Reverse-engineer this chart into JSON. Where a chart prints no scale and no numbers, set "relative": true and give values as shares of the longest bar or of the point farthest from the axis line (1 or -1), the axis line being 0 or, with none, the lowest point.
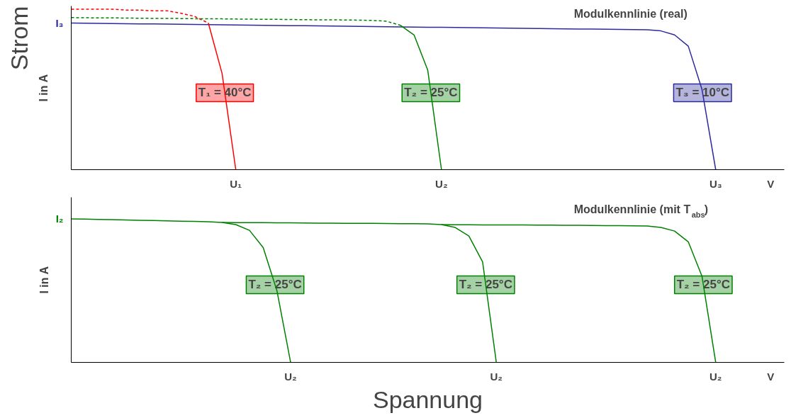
{
  "chart_data": [
    {
      "type": "line",
      "relative": true,
      "ylabel": "I in A",
      "annotations": [
        "Strom",
        "I₃",
        "Modulkennlinie (real)"
      ],
      "grid": false,
      "line_style": "solid",
      "categories": [
        null,
        null,
        null,
        null,
        null,
        null,
        null,
        null,
        null,
        null,
        null,
        null,
        "U₁",
        null,
        null,
        null,
        null,
        null,
        null,
        null,
        null,
        null,
        null,
        null,
        null,
        null,
        null,
        "U₂",
        null,
        null,
        null,
        null,
        null,
        null,
        null,
        null,
        null,
        null,
        null,
        null,
        null,
        null,
        null,
        null,
        null,
        null,
        null,
        "U₃",
        null,
        null,
        null,
        "V",
        null
      ],
      "series": [
        {
          "name": "T₃ = 10°C",
          "color": "#2b2b9b",
          "values": [
            0.914,
            0.913,
            0.912,
            0.911,
            0.91,
            0.909,
            0.908,
            0.907,
            0.906,
            0.905,
            0.904,
            0.903,
            0.902,
            0.901,
            0.9,
            0.899,
            0.898,
            0.897,
            0.896,
            0.895,
            0.894,
            0.893,
            0.892,
            0.891,
            0.89,
            0.889,
            0.888,
            0.887,
            0.886,
            0.885,
            0.884,
            0.883,
            0.882,
            0.881,
            0.88,
            0.879,
            0.878,
            0.877,
            0.876,
            0.875,
            0.874,
            0.873,
            0.872,
            0.865,
            0.84,
            0.77,
            0.5,
            0,
            null,
            null,
            null,
            null,
            null
          ]
        },
        {
          "color": "#ff0000",
          "line_style": "dashed",
          "values": [
            1.0,
            1.0,
            1.0,
            1.0,
            0.995,
            0.995,
            0.99,
            0.99,
            0.975,
            0.955,
            0.914,
            null,
            null,
            null,
            null,
            null,
            null,
            null,
            null,
            null,
            null,
            null,
            null,
            null,
            null,
            null,
            null,
            null,
            null,
            null,
            null,
            null,
            null,
            null,
            null,
            null,
            null,
            null,
            null,
            null,
            null,
            null,
            null,
            null,
            null,
            null,
            null,
            null,
            null,
            null,
            null,
            null,
            null
          ]
        },
        {
          "name": "T₁ = 40°C",
          "color": "#ff0000",
          "values": [
            null,
            null,
            null,
            null,
            null,
            null,
            null,
            null,
            null,
            null,
            0.914,
            0.6,
            0,
            null,
            null,
            null,
            null,
            null,
            null,
            null,
            null,
            null,
            null,
            null,
            null,
            null,
            null,
            null,
            null,
            null,
            null,
            null,
            null,
            null,
            null,
            null,
            null,
            null,
            null,
            null,
            null,
            null,
            null,
            null,
            null,
            null,
            null,
            null,
            null,
            null,
            null,
            null,
            null
          ]
        },
        {
          "color": "#008000",
          "line_style": "dashed",
          "values": [
            0.948,
            0.947,
            0.946,
            0.946,
            0.945,
            0.944,
            0.943,
            0.943,
            0.942,
            0.941,
            0.94,
            0.94,
            0.939,
            0.938,
            0.937,
            0.937,
            0.936,
            0.935,
            0.934,
            0.934,
            0.933,
            0.932,
            0.93,
            0.925,
            0.9,
            null,
            null,
            null,
            null,
            null,
            null,
            null,
            null,
            null,
            null,
            null,
            null,
            null,
            null,
            null,
            null,
            null,
            null,
            null,
            null,
            null,
            null,
            null,
            null,
            null,
            null,
            null,
            null
          ]
        },
        {
          "name": "T₂ = 25°C",
          "color": "#008000",
          "values": [
            null,
            null,
            null,
            null,
            null,
            null,
            null,
            null,
            null,
            null,
            null,
            null,
            null,
            null,
            null,
            null,
            null,
            null,
            null,
            null,
            null,
            null,
            null,
            null,
            0.9,
            0.84,
            0.62,
            0,
            null,
            null,
            null,
            null,
            null,
            null,
            null,
            null,
            null,
            null,
            null,
            null,
            null,
            null,
            null,
            null,
            null,
            null,
            null,
            null,
            null,
            null,
            null,
            null,
            null
          ]
        }
      ]
    },
    {
      "type": "line",
      "relative": true,
      "ylabel": "I in A",
      "xlabel": "Spannung",
      "annotations": [
        "I₂",
        "Modulkennlinie (mit T$_{abs}$)"
      ],
      "grid": false,
      "line_style": "solid",
      "categories": [
        null,
        null,
        null,
        null,
        null,
        null,
        null,
        null,
        null,
        null,
        null,
        null,
        null,
        null,
        null,
        null,
        "U₂",
        null,
        null,
        null,
        null,
        null,
        null,
        null,
        null,
        null,
        null,
        null,
        null,
        null,
        null,
        "U₂",
        null,
        null,
        null,
        null,
        null,
        null,
        null,
        null,
        null,
        null,
        null,
        null,
        null,
        null,
        null,
        "U₂",
        null,
        null,
        null,
        "V",
        null
      ],
      "series": [
        {
          "name": "T₂ = 25°C",
          "color": "#008000",
          "values": [
            1,
            0.998,
            0.996,
            0.994,
            0.992,
            0.99,
            0.988,
            0.986,
            0.984,
            0.982,
            0.98,
            0.975,
            0.96,
            0.92,
            0.8,
            0.5,
            0,
            null,
            null,
            null,
            null,
            null,
            null,
            null,
            null,
            null,
            null,
            null,
            null,
            null,
            null,
            null,
            null,
            null,
            null,
            null,
            null,
            null,
            null,
            null,
            null,
            null,
            null,
            null,
            null,
            null,
            null,
            null,
            null,
            null,
            null,
            null,
            null
          ]
        },
        {
          "name": "T₂ = 25°C",
          "color": "#008000",
          "values": [
            null,
            null,
            null,
            null,
            null,
            null,
            null,
            null,
            null,
            null,
            null,
            0.975,
            0.974,
            0.974,
            0.973,
            0.972,
            0.972,
            0.971,
            0.97,
            0.97,
            0.969,
            0.968,
            0.968,
            0.967,
            0.966,
            0.966,
            0.965,
            0.96,
            0.94,
            0.88,
            0.7,
            0,
            null,
            null,
            null,
            null,
            null,
            null,
            null,
            null,
            null,
            null,
            null,
            null,
            null,
            null,
            null,
            null,
            null,
            null,
            null,
            null,
            null
          ]
        },
        {
          "name": "T₂ = 25°C",
          "color": "#008000",
          "values": [
            null,
            null,
            null,
            null,
            null,
            null,
            null,
            null,
            null,
            null,
            null,
            null,
            null,
            null,
            null,
            null,
            null,
            null,
            null,
            null,
            null,
            null,
            null,
            null,
            null,
            null,
            null,
            0.96,
            0.959,
            0.959,
            0.958,
            0.958,
            0.957,
            0.957,
            0.956,
            0.956,
            0.955,
            0.955,
            0.954,
            0.953,
            0.952,
            0.951,
            0.95,
            0.94,
            0.915,
            0.84,
            0.6,
            0,
            null,
            null,
            null,
            null,
            null
          ]
        }
      ]
    }
  ]
}
